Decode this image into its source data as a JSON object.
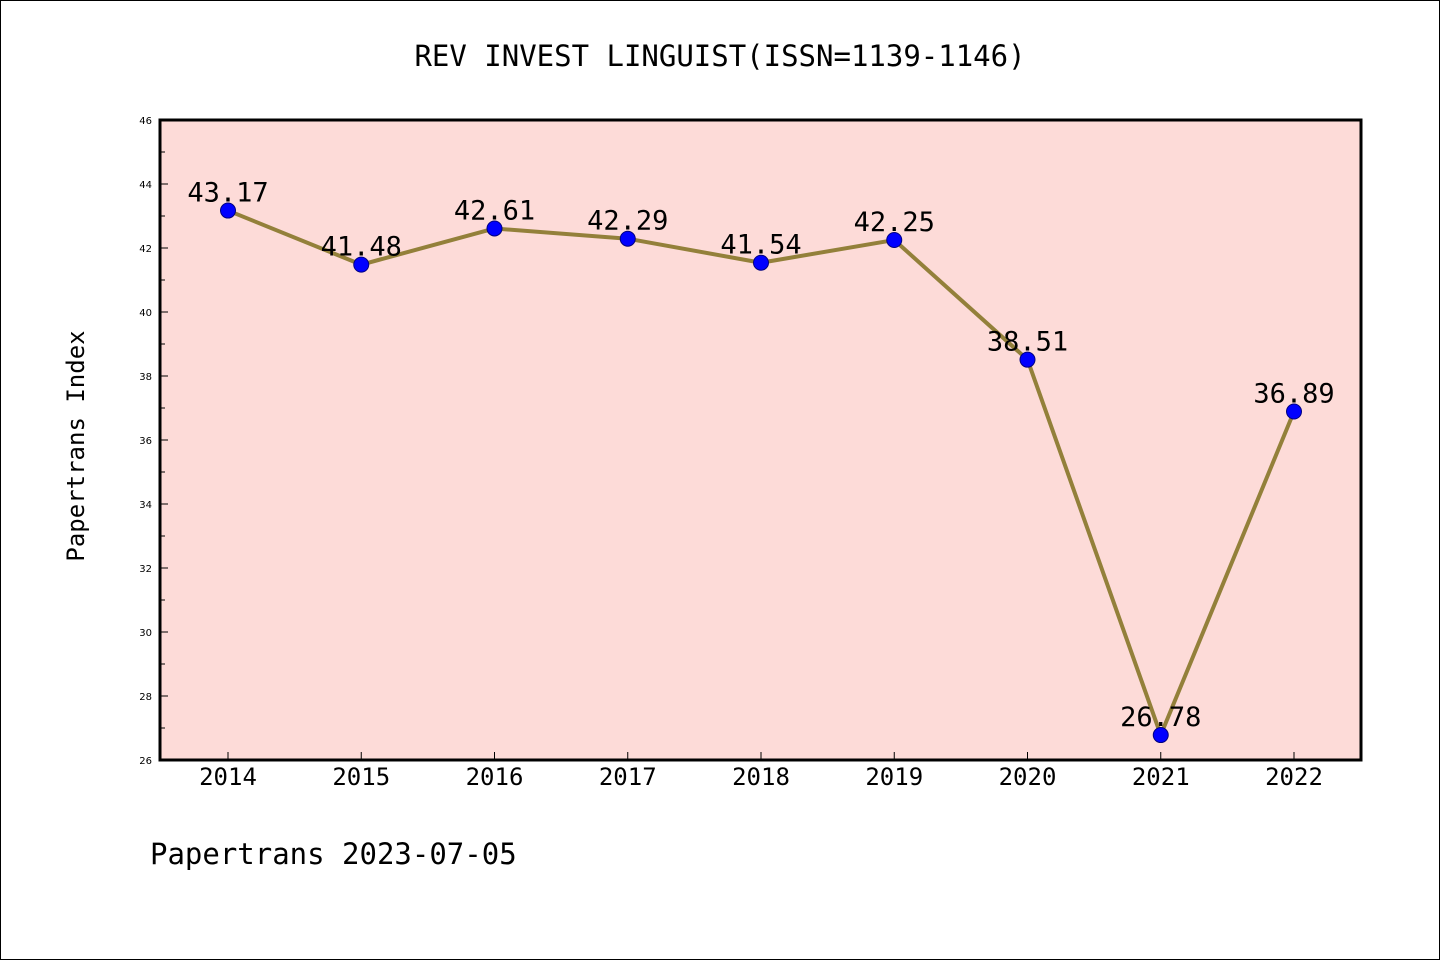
{
  "footer": "Papertrans 2023-07-05",
  "colors": {
    "plot_background": "#fddbd8",
    "line": "#93803a",
    "marker": "#0000ff",
    "axis": "#000000"
  },
  "chart_data": {
    "type": "line",
    "title": "REV INVEST LINGUIST(ISSN=1139-1146)",
    "xlabel": "",
    "ylabel": "Papertrans Index",
    "categories": [
      "2014",
      "2015",
      "2016",
      "2017",
      "2018",
      "2019",
      "2020",
      "2021",
      "2022"
    ],
    "values": [
      43.17,
      41.48,
      42.61,
      42.29,
      41.54,
      42.25,
      38.51,
      26.78,
      36.89
    ],
    "data_labels": [
      "43.17",
      "41.48",
      "42.61",
      "42.29",
      "41.54",
      "42.25",
      "38.51",
      "26.78",
      "36.89"
    ],
    "ylim": [
      26,
      46
    ],
    "yticks": [
      "26",
      "28",
      "30",
      "32",
      "34",
      "36",
      "38",
      "40",
      "42",
      "44",
      "46"
    ],
    "grid": false,
    "legend": "none"
  }
}
